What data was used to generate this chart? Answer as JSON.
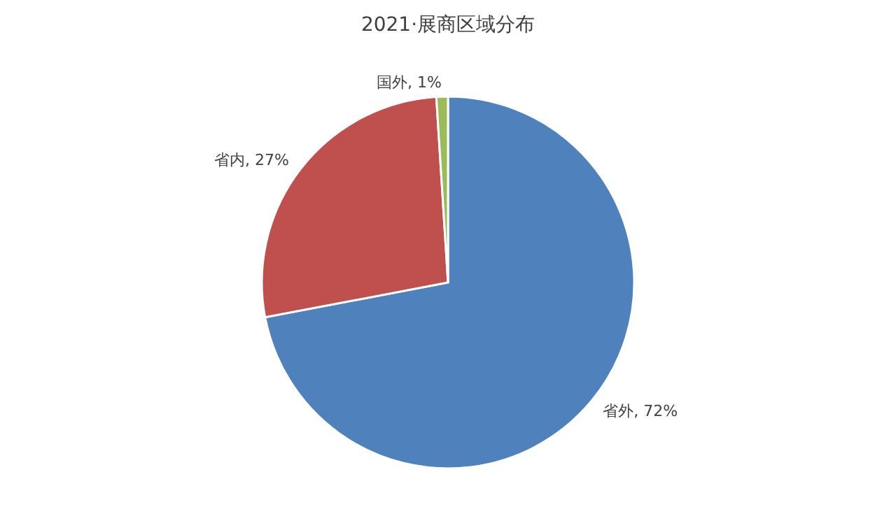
{
  "chart_data": {
    "type": "pie",
    "title": "2021·展商区域分布",
    "categories": [
      "省外",
      "省内",
      "国外"
    ],
    "values": [
      72,
      27,
      1
    ],
    "value_labels": [
      "72%",
      "27%",
      "1%"
    ],
    "colors": [
      "#4f81bd",
      "#c0504d",
      "#9bbb59"
    ],
    "legend": false
  }
}
